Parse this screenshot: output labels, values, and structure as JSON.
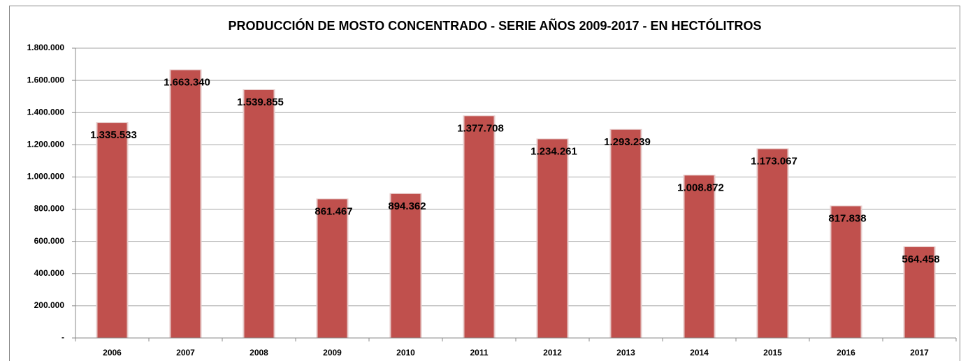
{
  "chart_data": {
    "type": "bar",
    "title": "PRODUCCIÓN DE MOSTO CONCENTRADO - SERIE AÑOS 2009-2017 - EN HECTÓLITROS",
    "categories": [
      "2006",
      "2007",
      "2008",
      "2009",
      "2010",
      "2011",
      "2012",
      "2013",
      "2014",
      "2015",
      "2016",
      "2017"
    ],
    "values": [
      1335533,
      1663340,
      1539855,
      861467,
      894362,
      1377708,
      1234261,
      1293239,
      1008872,
      1173067,
      817838,
      564458
    ],
    "value_labels": [
      "1.335.533",
      "1.663.340",
      "1.539.855",
      "861.467",
      "894.362",
      "1.377.708",
      "1.234.261",
      "1.293.239",
      "1.008.872",
      "1.173.067",
      "817.838",
      "564.458"
    ],
    "color": "#c0504d",
    "ylim": [
      0,
      1800000
    ],
    "yticks": [
      {
        "value": 0,
        "label": "-"
      },
      {
        "value": 200000,
        "label": "200.000"
      },
      {
        "value": 400000,
        "label": "400.000"
      },
      {
        "value": 600000,
        "label": "600.000"
      },
      {
        "value": 800000,
        "label": "800.000"
      },
      {
        "value": 1000000,
        "label": "1.000.000"
      },
      {
        "value": 1200000,
        "label": "1.200.000"
      },
      {
        "value": 1400000,
        "label": "1.400.000"
      },
      {
        "value": 1600000,
        "label": "1.600.000"
      },
      {
        "value": 1800000,
        "label": "1.800.000"
      }
    ],
    "grid": true
  }
}
